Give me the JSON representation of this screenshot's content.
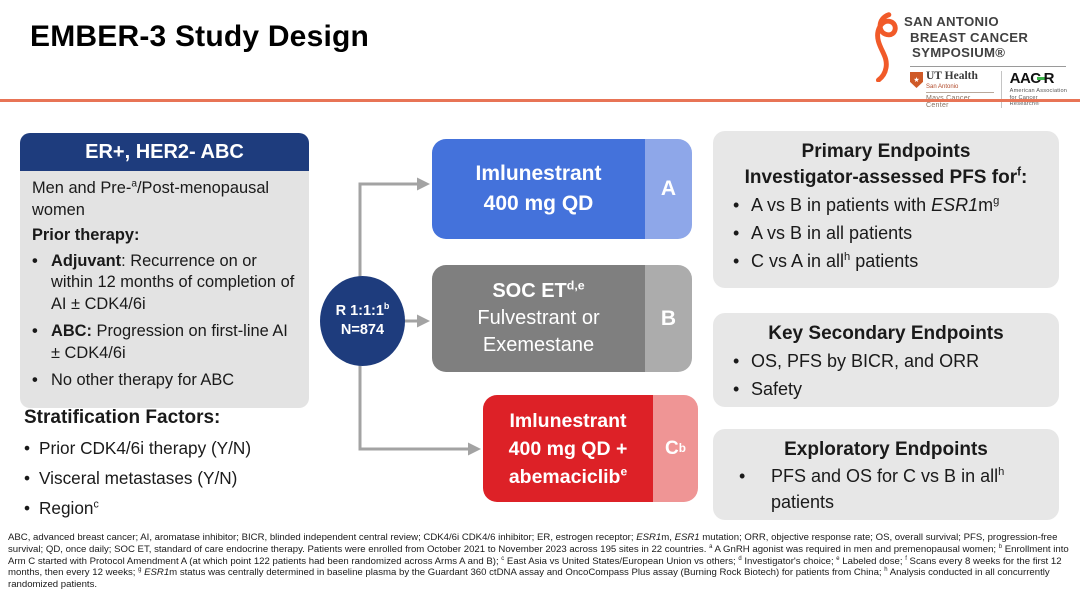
{
  "colors": {
    "navy": "#1e3c7d",
    "accent": "#e87456",
    "ribbon": "#f15a29",
    "panel": "#e7e7e7",
    "body": "#e3e3e3",
    "arm-a": "#4472db",
    "arm-a-tab": "#8ea7e9",
    "arm-b": "#7f7f7f",
    "arm-b-tab": "#acacac",
    "arm-c": "#dd2127",
    "arm-c-tab": "#ef9595",
    "arrow": "#a3a3a3",
    "green": "#3cb54a"
  },
  "header": {
    "title": "EMBER-3 Study Design",
    "logo": {
      "line1": "SAN ANTONIO",
      "line2": "BREAST CANCER",
      "line3": "SYMPOSIUM®",
      "ut": {
        "name": "UT Health",
        "city": "San Antonio",
        "center": "Mays Cancer Center"
      },
      "aacr": {
        "left": "AAC",
        "r": "R",
        "sub1": "American Association",
        "sub2": "for Cancer Research®"
      }
    }
  },
  "eligibility": {
    "header": "ER+, HER2- ABC",
    "intro_html": "Men and Pre-<sup>a</sup>/Post-menopausal women",
    "prior_label": "Prior therapy:",
    "bullets_html": [
      "<b>Adjuvant</b>: Recurrence on or within 12 months of completion of AI ± CDK4/6i",
      "<b>ABC:</b> Progression on first-line AI ± CDK4/6i",
      "No other therapy for ABC"
    ]
  },
  "stratification": {
    "title": "Stratification Factors:",
    "items_html": [
      "Prior CDK4/6i therapy (Y/N)",
      "Visceral metastases (Y/N)",
      "Region<sup>c</sup>"
    ]
  },
  "randomization": {
    "line1_html": "R 1:1:1<sup>b</sup>",
    "line2": "N=874"
  },
  "arms": {
    "a": {
      "tab": "A",
      "line1": "Imlunestrant",
      "line2": "400 mg QD"
    },
    "b": {
      "tab": "B",
      "line1_html": "SOC ET<sup>d,e</sup>",
      "line2": "Fulvestrant or",
      "line3": "Exemestane"
    },
    "c": {
      "tab_html": "C<sup>b</sup>",
      "line1": "Imlunestrant",
      "line2": "400 mg QD +",
      "line3_html": "abemaciclib<sup>e</sup>"
    }
  },
  "endpoints": {
    "primary": {
      "title": "Primary Endpoints",
      "subtitle_html": "Investigator-assessed PFS for<sup>f</sup>:",
      "bullets_html": [
        "A vs B in patients with <i>ESR1</i>m<sup>g</sup>",
        "A vs B in all patients",
        "C vs A in all<sup>h</sup> patients"
      ]
    },
    "secondary": {
      "title": "Key Secondary Endpoints",
      "bullets_html": [
        "OS, PFS by BICR, and ORR",
        "Safety"
      ]
    },
    "exploratory": {
      "title": "Exploratory Endpoints",
      "bullets_html": [
        "PFS and OS for C vs B in all<sup>h</sup> patients"
      ]
    }
  },
  "footnote": {
    "html": "ABC, advanced breast cancer; AI, aromatase inhibitor; BICR, blinded independent central review; CDK4/6i CDK4/6 inhibitor; ER, estrogen receptor; <i>ESR1</i>m, <i>ESR1</i> mutation; ORR, objective response rate; OS, overall survival; PFS, progression-free survival; QD, once daily; SOC ET, standard of care endocrine therapy. Patients were enrolled from October 2021 to November 2023 across 195 sites in 22 countries. <sup>a</sup> A GnRH agonist was required in men and premenopausal women; <sup>b</sup> Enrollment into Arm C started with Protocol Amendment A (at which point 122 patients had been randomized across Arms A and B); <sup>c</sup> East Asia vs United States/European Union vs others; <sup>d</sup> Investigator's choice; <sup>e</sup> Labeled dose; <sup>f</sup> Scans every 8 weeks for the first 12 months, then every 12 weeks; <sup>g</sup> <i>ESR1</i>m status was centrally determined in baseline plasma by the Guardant 360 ctDNA assay and OncoCompass Plus assay (Burning Rock Biotech) for patients from China; <sup>h</sup> Analysis conducted in all concurrently randomized patients."
  }
}
